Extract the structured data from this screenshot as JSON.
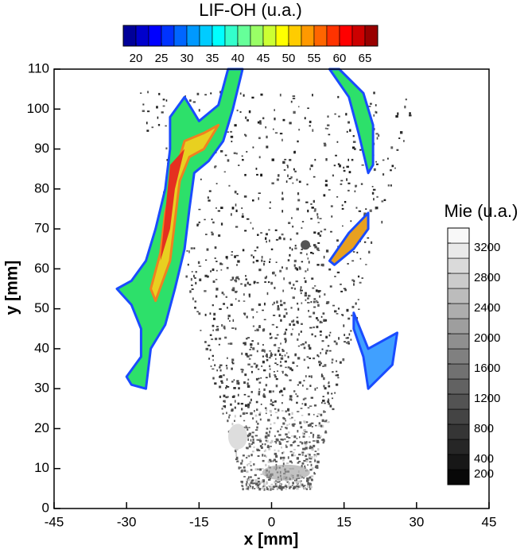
{
  "chart_data": {
    "type": "field",
    "xlabel": "x [mm]",
    "ylabel": "y [mm]",
    "xlim": [
      -45,
      45
    ],
    "xticks": [
      -45,
      -30,
      -15,
      0,
      15,
      30,
      45
    ],
    "ylim": [
      0,
      110
    ],
    "yticks": [
      0,
      10,
      20,
      30,
      40,
      50,
      60,
      70,
      80,
      90,
      100,
      110
    ],
    "colorbars": [
      {
        "label": "LIF-OH (u.a.)",
        "colormap": "jet",
        "clim": [
          17.5,
          67.5
        ],
        "step": 2.5,
        "orientation": "horizontal",
        "ticks": [
          20,
          25,
          30,
          35,
          40,
          45,
          50,
          55,
          60,
          65
        ]
      },
      {
        "label": "Mie (u.a.)",
        "colormap": "gray",
        "clim": [
          0,
          3400
        ],
        "step": 200,
        "orientation": "vertical",
        "ticks": [
          200,
          400,
          800,
          1200,
          1600,
          2000,
          2400,
          2800,
          3200
        ]
      }
    ]
  }
}
